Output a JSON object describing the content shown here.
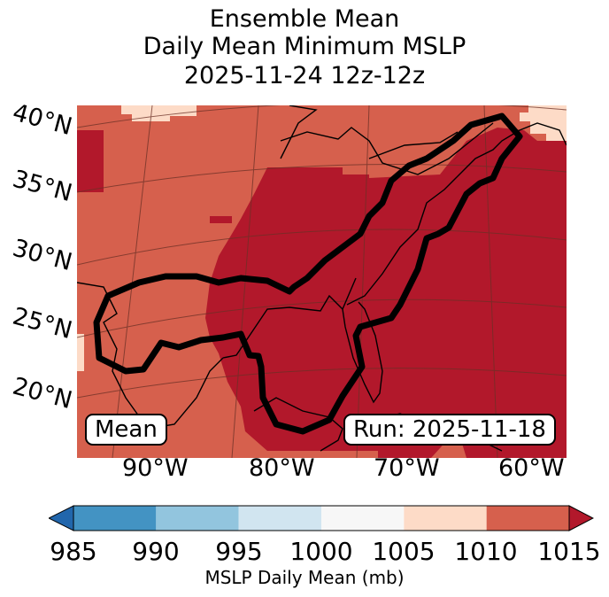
{
  "title": {
    "line1": "Ensemble Mean",
    "line2": "Daily Mean Minimum MSLP",
    "line3": "2025-11-24 12z-12z"
  },
  "map": {
    "lat_labels": [
      "40°N",
      "35°N",
      "30°N",
      "25°N",
      "20°N"
    ],
    "lon_labels": [
      "90°W",
      "80°W",
      "70°W",
      "60°W"
    ],
    "mean_box": "Mean",
    "run_box": "Run: 2025-11-18",
    "fill_colors": {
      "c_1005_1010": "#fddbc7",
      "c_1010_1015": "#d6604d",
      "c_above_1015": "#b2182b",
      "contour": "#000000"
    }
  },
  "colorbar": {
    "label": "MSLP Daily Mean (mb)",
    "ticks": [
      "985",
      "990",
      "995",
      "1000",
      "1005",
      "1010",
      "1015"
    ],
    "colors": [
      "#4393c3",
      "#92c5de",
      "#d1e5f0",
      "#f7f7f7",
      "#fddbc7",
      "#d6604d"
    ],
    "under_color": "#2166ac",
    "over_color": "#b2182b"
  }
}
